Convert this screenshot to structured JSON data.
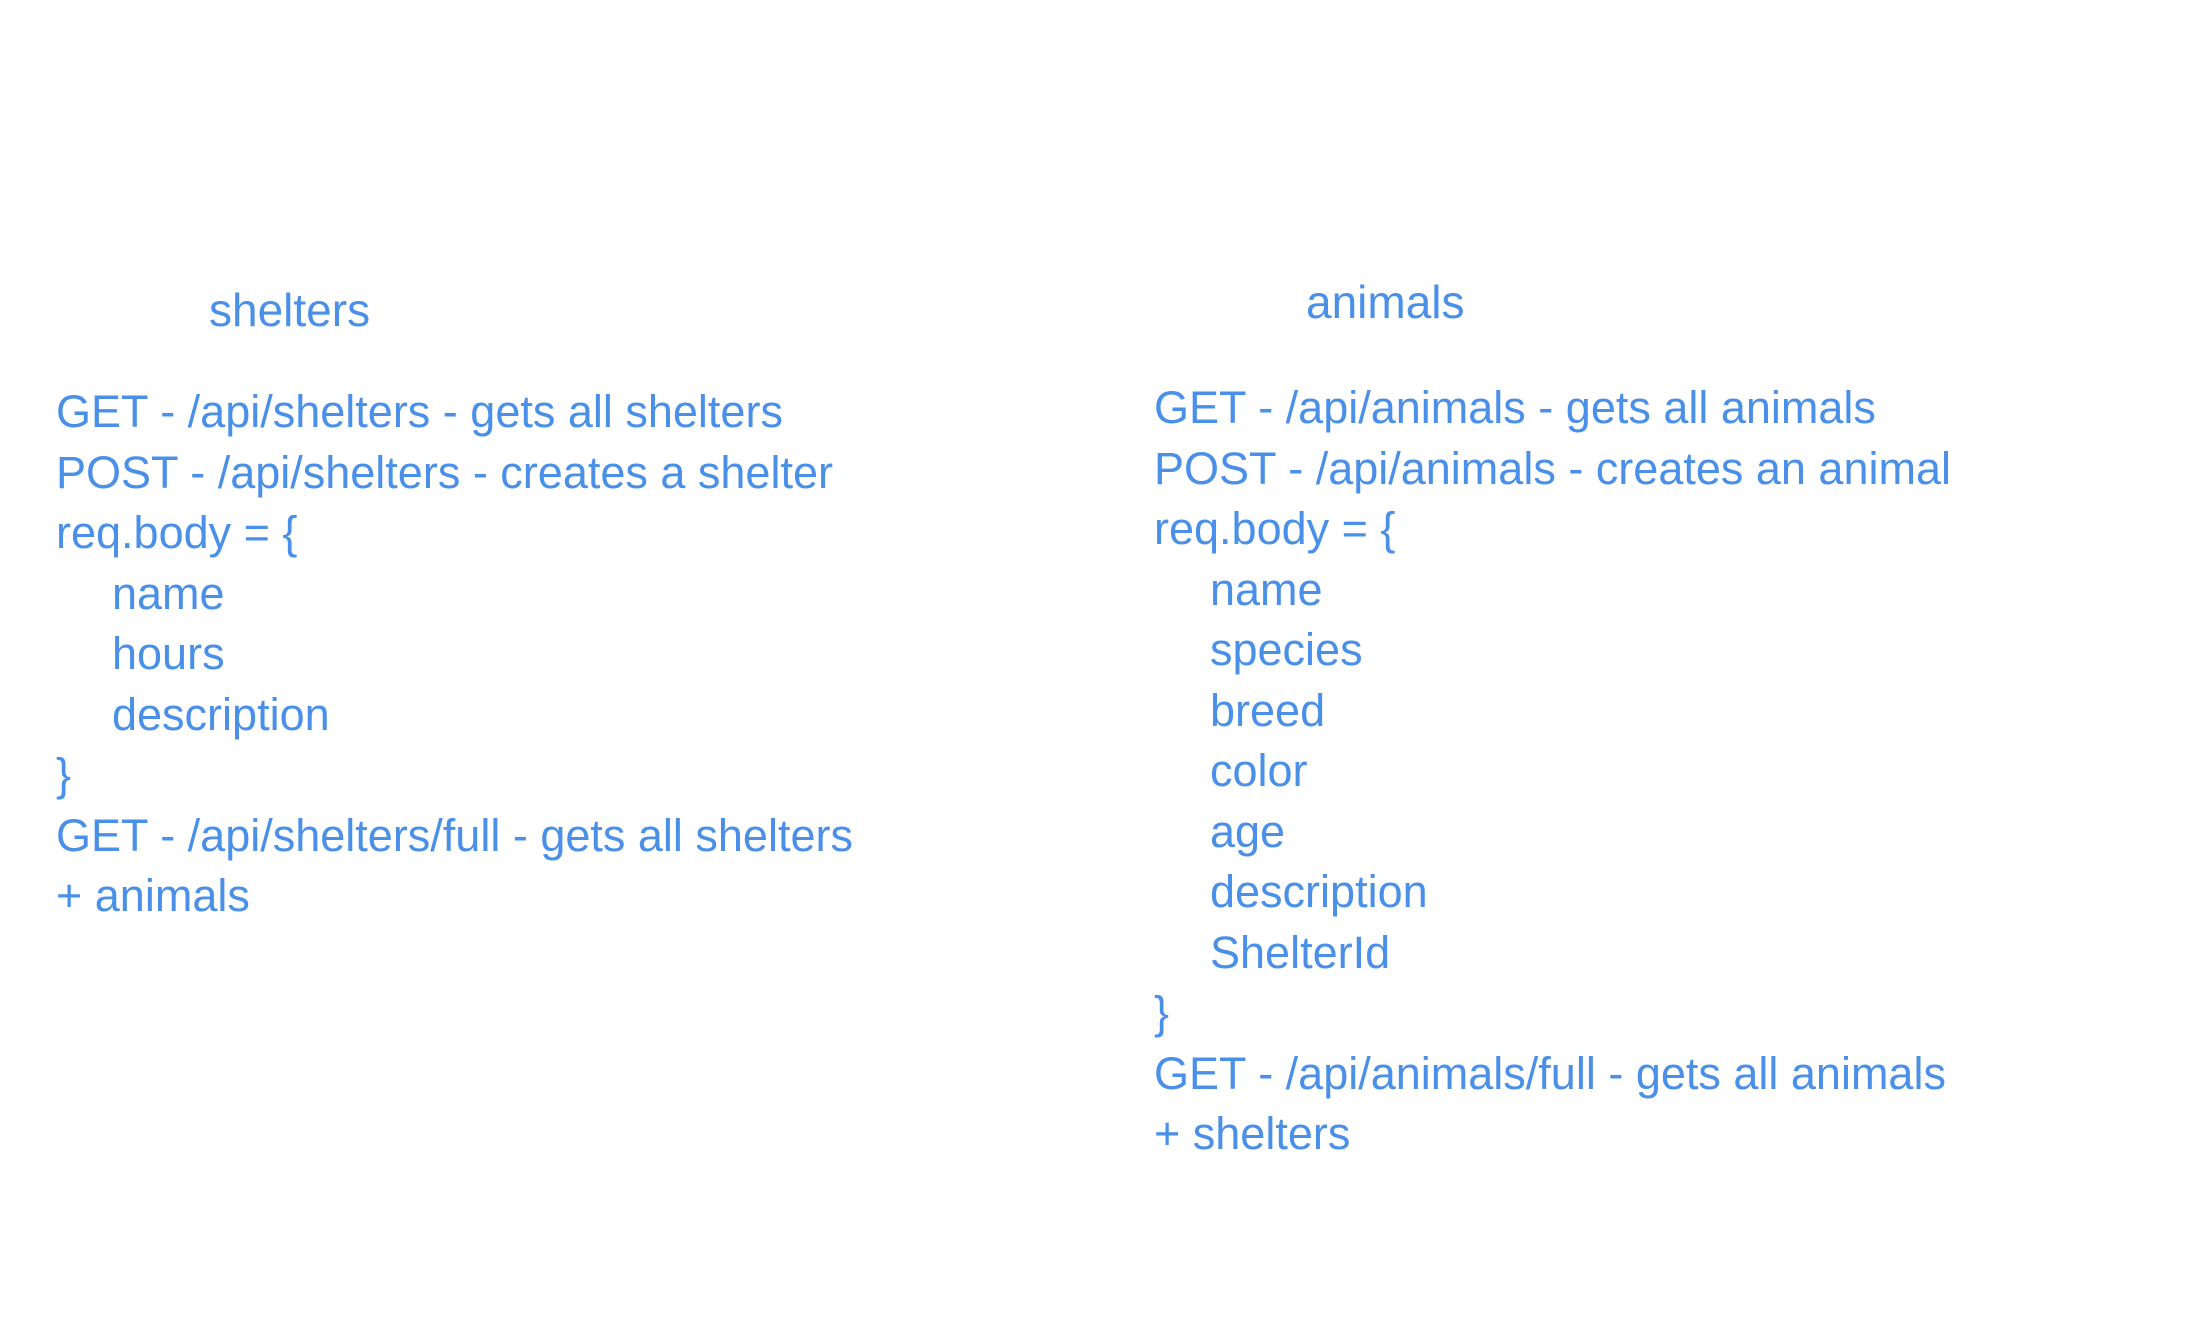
{
  "background": "#ffffff",
  "text_color": "#4a90e8",
  "shelters": {
    "title": "shelters",
    "lines": [
      "GET - /api/shelters - gets all shelters",
      "POST - /api/shelters - creates a shelter",
      "req.body = {",
      "name",
      "hours",
      "description",
      "}",
      "GET - /api/shelters/full - gets all shelters",
      "+ animals"
    ]
  },
  "animals": {
    "title": "animals",
    "lines": [
      "GET - /api/animals - gets all animals",
      "POST - /api/animals - creates an animal",
      "req.body = {",
      "name",
      "species",
      "breed",
      "color",
      "age",
      "description",
      "ShelterId",
      "}",
      "GET - /api/animals/full - gets all animals",
      "+ shelters"
    ]
  }
}
